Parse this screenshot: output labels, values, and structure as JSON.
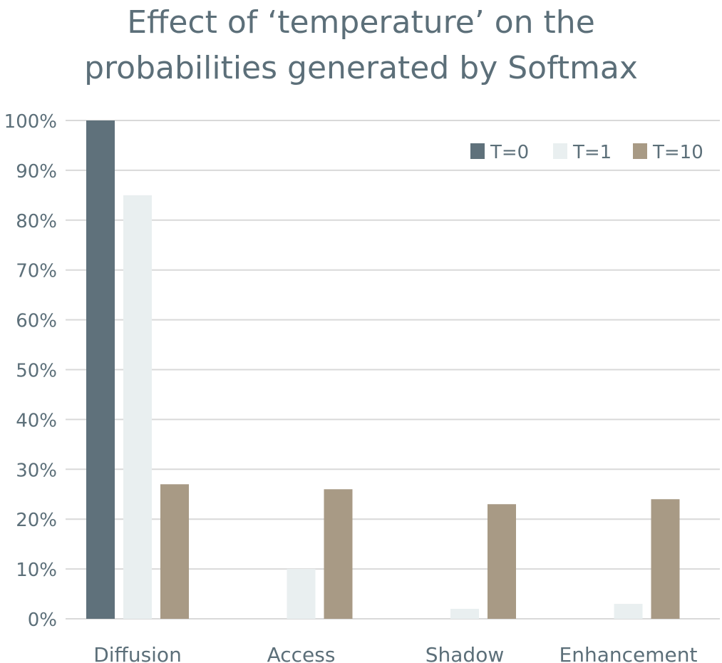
{
  "chart_data": {
    "type": "bar",
    "title_lines": [
      "Effect of ‘temperature’ on the",
      "probabilities generated by Softmax"
    ],
    "categories": [
      "Diffusion",
      "Access",
      "Shadow",
      "Enhancement"
    ],
    "series": [
      {
        "name": "T=0",
        "color": "#5f717b",
        "values": [
          100,
          0,
          0,
          0
        ]
      },
      {
        "name": "T=1",
        "color": "#e9eff0",
        "values": [
          85,
          10,
          2,
          3
        ]
      },
      {
        "name": "T=10",
        "color": "#a89a85",
        "values": [
          27,
          26,
          23,
          24
        ]
      }
    ],
    "ylim": [
      0,
      100
    ],
    "yticks": [
      "0%",
      "10%",
      "20%",
      "30%",
      "40%",
      "50%",
      "60%",
      "70%",
      "80%",
      "90%",
      "100%"
    ],
    "grid": true,
    "legend_position": "top-right"
  }
}
